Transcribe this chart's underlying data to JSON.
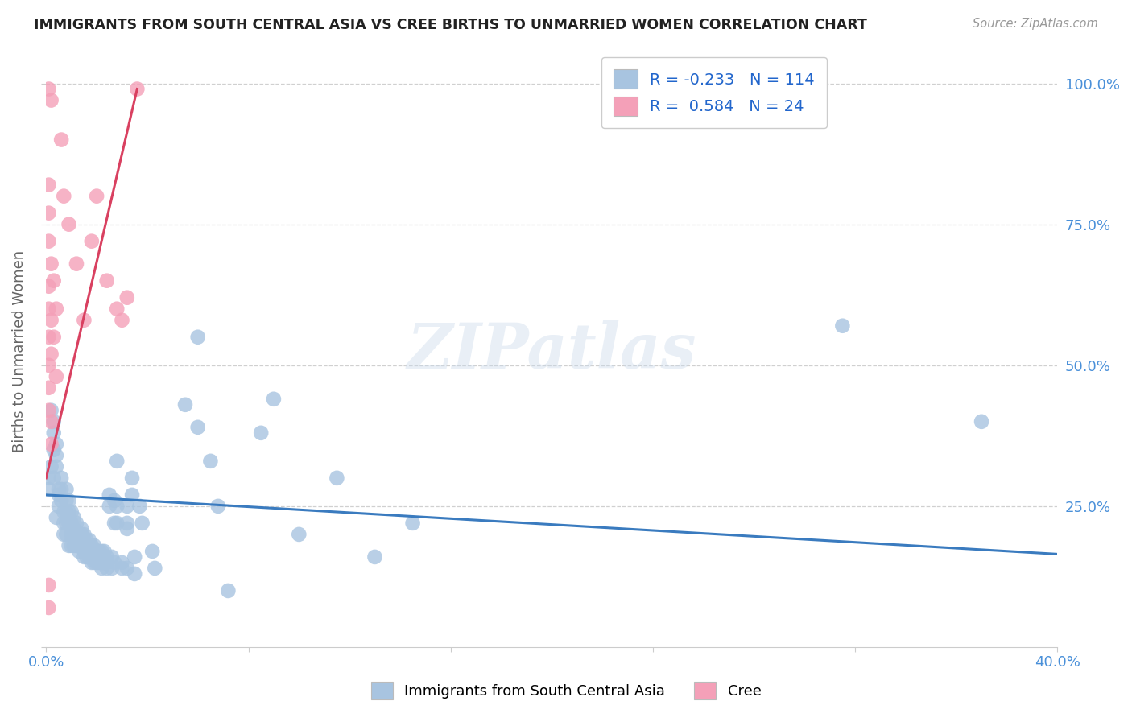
{
  "title": "IMMIGRANTS FROM SOUTH CENTRAL ASIA VS CREE BIRTHS TO UNMARRIED WOMEN CORRELATION CHART",
  "source": "Source: ZipAtlas.com",
  "ylabel_label": "Births to Unmarried Women",
  "legend_blue_r": "-0.233",
  "legend_blue_n": "114",
  "legend_pink_r": "0.584",
  "legend_pink_n": "24",
  "blue_color": "#a8c4e0",
  "pink_color": "#f4a0b8",
  "blue_line_color": "#3a7bbf",
  "pink_line_color": "#d94060",
  "watermark_text": "ZIPatlas",
  "xlim": [
    0.0,
    0.4
  ],
  "ylim": [
    0.0,
    1.05
  ],
  "xticks": [
    0.0,
    0.08,
    0.16,
    0.24,
    0.32,
    0.4
  ],
  "xtick_labels": [
    "0.0%",
    "",
    "",
    "",
    "",
    "40.0%"
  ],
  "yticks": [
    0.0,
    0.25,
    0.5,
    0.75,
    1.0
  ],
  "ytick_labels_right": [
    "",
    "25.0%",
    "50.0%",
    "75.0%",
    "100.0%"
  ],
  "blue_trend": [
    0.0,
    0.4,
    0.27,
    0.165
  ],
  "pink_trend": [
    0.0,
    0.036,
    0.3,
    0.99
  ],
  "blue_scatter": [
    [
      0.002,
      0.42
    ],
    [
      0.003,
      0.38
    ],
    [
      0.003,
      0.35
    ],
    [
      0.002,
      0.32
    ],
    [
      0.001,
      0.3
    ],
    [
      0.001,
      0.28
    ],
    [
      0.003,
      0.4
    ],
    [
      0.004,
      0.36
    ],
    [
      0.004,
      0.34
    ],
    [
      0.004,
      0.32
    ],
    [
      0.003,
      0.3
    ],
    [
      0.005,
      0.28
    ],
    [
      0.005,
      0.27
    ],
    [
      0.005,
      0.25
    ],
    [
      0.004,
      0.23
    ],
    [
      0.006,
      0.3
    ],
    [
      0.006,
      0.28
    ],
    [
      0.006,
      0.26
    ],
    [
      0.007,
      0.24
    ],
    [
      0.007,
      0.22
    ],
    [
      0.007,
      0.2
    ],
    [
      0.008,
      0.28
    ],
    [
      0.008,
      0.26
    ],
    [
      0.008,
      0.24
    ],
    [
      0.008,
      0.22
    ],
    [
      0.008,
      0.2
    ],
    [
      0.009,
      0.18
    ],
    [
      0.009,
      0.26
    ],
    [
      0.009,
      0.24
    ],
    [
      0.009,
      0.22
    ],
    [
      0.01,
      0.2
    ],
    [
      0.01,
      0.18
    ],
    [
      0.01,
      0.24
    ],
    [
      0.01,
      0.22
    ],
    [
      0.011,
      0.2
    ],
    [
      0.011,
      0.18
    ],
    [
      0.011,
      0.23
    ],
    [
      0.011,
      0.21
    ],
    [
      0.012,
      0.2
    ],
    [
      0.012,
      0.19
    ],
    [
      0.012,
      0.18
    ],
    [
      0.012,
      0.22
    ],
    [
      0.013,
      0.2
    ],
    [
      0.013,
      0.19
    ],
    [
      0.013,
      0.18
    ],
    [
      0.013,
      0.17
    ],
    [
      0.014,
      0.21
    ],
    [
      0.014,
      0.2
    ],
    [
      0.014,
      0.19
    ],
    [
      0.014,
      0.18
    ],
    [
      0.015,
      0.2
    ],
    [
      0.015,
      0.19
    ],
    [
      0.015,
      0.18
    ],
    [
      0.015,
      0.17
    ],
    [
      0.015,
      0.16
    ],
    [
      0.016,
      0.19
    ],
    [
      0.016,
      0.18
    ],
    [
      0.016,
      0.17
    ],
    [
      0.016,
      0.16
    ],
    [
      0.017,
      0.19
    ],
    [
      0.017,
      0.18
    ],
    [
      0.017,
      0.17
    ],
    [
      0.017,
      0.16
    ],
    [
      0.018,
      0.18
    ],
    [
      0.018,
      0.17
    ],
    [
      0.018,
      0.16
    ],
    [
      0.018,
      0.15
    ],
    [
      0.019,
      0.18
    ],
    [
      0.019,
      0.17
    ],
    [
      0.019,
      0.16
    ],
    [
      0.019,
      0.15
    ],
    [
      0.02,
      0.17
    ],
    [
      0.02,
      0.16
    ],
    [
      0.02,
      0.15
    ],
    [
      0.021,
      0.17
    ],
    [
      0.021,
      0.16
    ],
    [
      0.021,
      0.15
    ],
    [
      0.022,
      0.17
    ],
    [
      0.022,
      0.16
    ],
    [
      0.022,
      0.15
    ],
    [
      0.022,
      0.14
    ],
    [
      0.023,
      0.17
    ],
    [
      0.023,
      0.16
    ],
    [
      0.023,
      0.15
    ],
    [
      0.024,
      0.16
    ],
    [
      0.024,
      0.15
    ],
    [
      0.024,
      0.14
    ],
    [
      0.025,
      0.27
    ],
    [
      0.025,
      0.25
    ],
    [
      0.026,
      0.16
    ],
    [
      0.026,
      0.14
    ],
    [
      0.027,
      0.26
    ],
    [
      0.027,
      0.22
    ],
    [
      0.027,
      0.15
    ],
    [
      0.028,
      0.33
    ],
    [
      0.028,
      0.25
    ],
    [
      0.028,
      0.22
    ],
    [
      0.03,
      0.15
    ],
    [
      0.03,
      0.14
    ],
    [
      0.032,
      0.25
    ],
    [
      0.032,
      0.22
    ],
    [
      0.032,
      0.21
    ],
    [
      0.032,
      0.14
    ],
    [
      0.034,
      0.3
    ],
    [
      0.034,
      0.27
    ],
    [
      0.035,
      0.16
    ],
    [
      0.035,
      0.13
    ],
    [
      0.037,
      0.25
    ],
    [
      0.038,
      0.22
    ],
    [
      0.042,
      0.17
    ],
    [
      0.043,
      0.14
    ],
    [
      0.055,
      0.43
    ],
    [
      0.06,
      0.39
    ],
    [
      0.06,
      0.55
    ],
    [
      0.065,
      0.33
    ],
    [
      0.068,
      0.25
    ],
    [
      0.072,
      0.1
    ],
    [
      0.085,
      0.38
    ],
    [
      0.09,
      0.44
    ],
    [
      0.1,
      0.2
    ],
    [
      0.115,
      0.3
    ],
    [
      0.13,
      0.16
    ],
    [
      0.145,
      0.22
    ],
    [
      0.315,
      0.57
    ],
    [
      0.37,
      0.4
    ]
  ],
  "pink_scatter": [
    [
      0.001,
      0.99
    ],
    [
      0.002,
      0.97
    ],
    [
      0.001,
      0.82
    ],
    [
      0.001,
      0.77
    ],
    [
      0.001,
      0.72
    ],
    [
      0.002,
      0.68
    ],
    [
      0.001,
      0.64
    ],
    [
      0.001,
      0.6
    ],
    [
      0.001,
      0.55
    ],
    [
      0.001,
      0.5
    ],
    [
      0.001,
      0.46
    ],
    [
      0.001,
      0.42
    ],
    [
      0.002,
      0.4
    ],
    [
      0.002,
      0.36
    ],
    [
      0.002,
      0.52
    ],
    [
      0.002,
      0.58
    ],
    [
      0.003,
      0.65
    ],
    [
      0.003,
      0.55
    ],
    [
      0.004,
      0.6
    ],
    [
      0.004,
      0.48
    ],
    [
      0.001,
      0.11
    ],
    [
      0.001,
      0.07
    ],
    [
      0.006,
      0.9
    ],
    [
      0.007,
      0.8
    ],
    [
      0.009,
      0.75
    ],
    [
      0.012,
      0.68
    ],
    [
      0.015,
      0.58
    ],
    [
      0.018,
      0.72
    ],
    [
      0.02,
      0.8
    ],
    [
      0.024,
      0.65
    ],
    [
      0.028,
      0.6
    ],
    [
      0.03,
      0.58
    ],
    [
      0.032,
      0.62
    ],
    [
      0.036,
      0.99
    ]
  ]
}
